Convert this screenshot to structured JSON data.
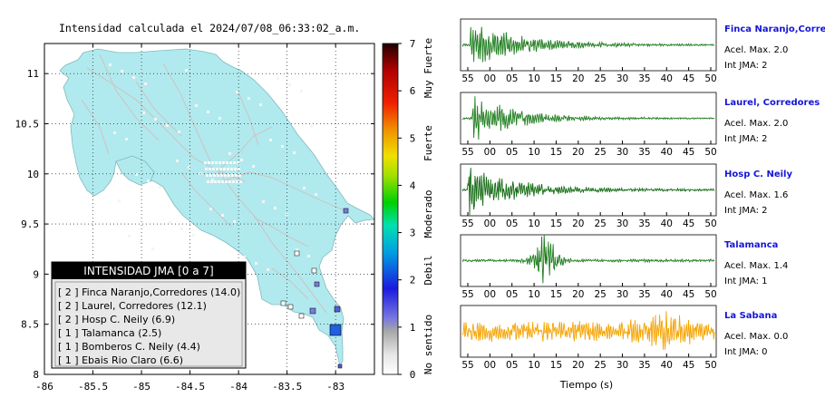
{
  "map": {
    "title": "Intensidad calculada el 2024/07/08_06:33:02_a.m.",
    "x_ticks": [
      "-86",
      "-85.5",
      "-85",
      "-84.5",
      "-84",
      "-83.5",
      "-83"
    ],
    "y_ticks": [
      "8",
      "8.5",
      "9",
      "9.5",
      "10",
      "10.5",
      "11"
    ],
    "xlim": [
      -86,
      -82.6
    ],
    "ylim": [
      8,
      11.3
    ],
    "land_color": "#b1eaee",
    "grid": true,
    "legend": {
      "title": "INTENSIDAD JMA [0 a 7]",
      "items": [
        "[ 2 ]  Finca Naranjo,Corredores (14.0)",
        "[ 2 ]  Laurel, Corredores (12.1)",
        "[ 2 ]  Hosp C. Neily (6.9)",
        "[ 1 ]  Talamanca (2.5)",
        "[ 1 ]  Bomberos C. Neily (4.4)",
        "[ 1 ]  Ebais Rio Claro (6.6)"
      ]
    }
  },
  "colorbar": {
    "ticks": [
      "0",
      "1",
      "2",
      "3",
      "4",
      "5",
      "6",
      "7"
    ],
    "labels": [
      "No sentido",
      "Debil",
      "Moderado",
      "Fuerte",
      "Muy Fuerte"
    ]
  },
  "chart_data": {
    "type": "line",
    "xlabel": "Tiempo (s)",
    "panels": [
      {
        "name": "Finca Naranjo,Corredor",
        "acel": "Acel. Max. 2.0",
        "jma": "Int JMA: 2",
        "color": "#1e7d1e",
        "ticks": [
          "55",
          "00",
          "05",
          "10",
          "15",
          "20",
          "25",
          "30",
          "35",
          "40",
          "45",
          "50"
        ]
      },
      {
        "name": "Laurel, Corredores",
        "acel": "Acel. Max. 2.0",
        "jma": "Int JMA: 2",
        "color": "#1e7d1e",
        "ticks": [
          "55",
          "00",
          "05",
          "10",
          "15",
          "20",
          "25",
          "30",
          "35",
          "40",
          "45",
          "50"
        ]
      },
      {
        "name": "Hosp C. Neily",
        "acel": "Acel. Max. 1.6",
        "jma": "Int JMA: 2",
        "color": "#136a13",
        "ticks": [
          "55",
          "00",
          "05",
          "10",
          "15",
          "20",
          "25",
          "30",
          "35",
          "40",
          "45",
          "50"
        ]
      },
      {
        "name": "Talamanca",
        "acel": "Acel. Max. 1.4",
        "jma": "Int JMA: 1",
        "color": "#1e7d1e",
        "ticks": [
          "55",
          "00",
          "05",
          "10",
          "15",
          "20",
          "25",
          "30",
          "35",
          "40",
          "45",
          "50"
        ]
      },
      {
        "name": "La Sabana",
        "acel": "Acel. Max. 0.0",
        "jma": "Int JMA: 0",
        "color": "#f5a300",
        "ticks": [
          "55",
          "00",
          "05",
          "10",
          "15",
          "20",
          "25",
          "30",
          "35",
          "40",
          "45",
          "50"
        ]
      }
    ]
  }
}
